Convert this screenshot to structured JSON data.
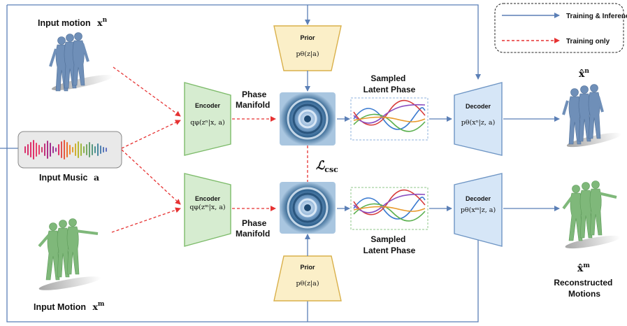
{
  "legend": {
    "solid_label": "Training & Inference",
    "dashed_label": "Training only",
    "solid_color": "#5b7fb6",
    "dashed_color": "#e63232"
  },
  "inputs": {
    "motion_n_label": "Input motion",
    "motion_n_sym": "x",
    "motion_n_sup": "n",
    "music_label": "Input Music",
    "music_sym": "a",
    "motion_m_label": "Input Motion",
    "motion_m_sym": "x",
    "motion_m_sup": "m"
  },
  "encoder_top": {
    "title": "Encoder",
    "formula": "qφ(zⁿ|x, a)"
  },
  "encoder_bottom": {
    "title": "Encoder",
    "formula": "qφ(zᵐ|x, a)"
  },
  "prior_top": {
    "title": "Prior",
    "formula": "pθ(z|a)"
  },
  "prior_bottom": {
    "title": "Prior",
    "formula": "pθ(z|a)"
  },
  "phase_manifold_top": [
    "Phase",
    "Manifold"
  ],
  "phase_manifold_bottom": [
    "Phase",
    "Manifold"
  ],
  "sampled_top": [
    "Sampled",
    "Latent Phase"
  ],
  "sampled_bottom": [
    "Sampled",
    "Latent Phase"
  ],
  "loss": {
    "symbol": "ℒ",
    "subscript": "csc"
  },
  "decoder_top": {
    "title": "Decoder",
    "formula": "pθ(xⁿ|z, a)"
  },
  "decoder_bottom": {
    "title": "Decoder",
    "formula": "pθ(xᵐ|z, a)"
  },
  "outputs": {
    "xhat_n_sym": "x̂",
    "xhat_n_sup": "n",
    "xhat_m_sym": "x̂",
    "xhat_m_sup": "m",
    "reconstructed": [
      "Reconstructed",
      "Motions"
    ]
  },
  "colors": {
    "encoder_fill": "#d6ecd0",
    "encoder_stroke": "#7dbb6a",
    "prior_fill": "#fbefc8",
    "prior_stroke": "#d9b04a",
    "decoder_fill": "#d6e6f7",
    "decoder_stroke": "#6e95c4",
    "figure_blue": "#6f8fb8",
    "figure_green": "#7fb87a"
  }
}
